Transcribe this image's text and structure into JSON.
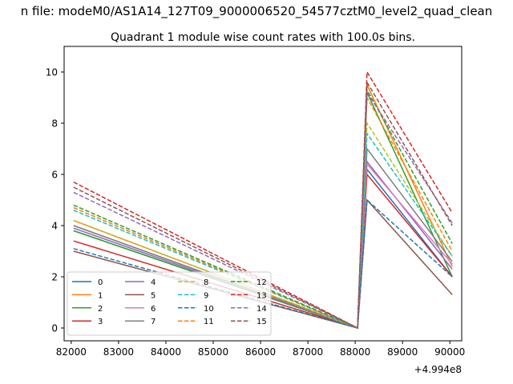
{
  "figure": {
    "suptitle": "n file: modeM0/AS1A14_127T09_9000006520_54577cztM0_level2_quad_clean"
  },
  "chart_data": {
    "type": "line",
    "title": "Quadrant 1 module wise count rates with 100.0s bins.",
    "xlabel": "",
    "ylabel": "",
    "x_offset_label": "+4.994e8",
    "xlim": [
      81850,
      90250
    ],
    "ylim": [
      -0.5,
      11.0
    ],
    "x_ticks": [
      82000,
      83000,
      84000,
      85000,
      86000,
      87000,
      88000,
      89000,
      90000
    ],
    "x_tick_labels": [
      "82000",
      "83000",
      "84000",
      "85000",
      "86000",
      "87000",
      "88000",
      "89000",
      "90000"
    ],
    "y_ticks": [
      0,
      2,
      4,
      6,
      8,
      10
    ],
    "y_tick_labels": [
      "0",
      "2",
      "4",
      "6",
      "8",
      "10"
    ],
    "grid": false,
    "legend": {
      "location": "lower-left",
      "columns": 4
    },
    "x": [
      82050,
      88050,
      88250,
      90050
    ],
    "series": [
      {
        "name": "0",
        "color": "#1f77b4",
        "style": "solid",
        "values": [
          3.8,
          0.0,
          6.2,
          2.0
        ]
      },
      {
        "name": "1",
        "color": "#ff7f0e",
        "style": "solid",
        "values": [
          4.2,
          0.0,
          9.5,
          2.4
        ]
      },
      {
        "name": "2",
        "color": "#2ca02c",
        "style": "solid",
        "values": [
          3.8,
          0.0,
          9.2,
          2.0
        ]
      },
      {
        "name": "3",
        "color": "#d62728",
        "style": "solid",
        "values": [
          3.4,
          0.0,
          6.0,
          2.0
        ]
      },
      {
        "name": "4",
        "color": "#9467bd",
        "style": "solid",
        "values": [
          3.9,
          0.0,
          6.5,
          2.3
        ]
      },
      {
        "name": "5",
        "color": "#8c564b",
        "style": "solid",
        "values": [
          3.0,
          0.0,
          5.0,
          1.3
        ]
      },
      {
        "name": "6",
        "color": "#e377c2",
        "style": "solid",
        "values": [
          4.0,
          0.0,
          6.4,
          2.5
        ]
      },
      {
        "name": "7",
        "color": "#7f7f7f",
        "style": "solid",
        "values": [
          4.0,
          0.0,
          7.0,
          2.6
        ]
      },
      {
        "name": "8",
        "color": "#bcbd22",
        "style": "dashed",
        "values": [
          4.2,
          0.0,
          8.0,
          2.8
        ]
      },
      {
        "name": "9",
        "color": "#17becf",
        "style": "dashed",
        "values": [
          4.6,
          0.0,
          7.6,
          2.8
        ]
      },
      {
        "name": "10",
        "color": "#1f77b4",
        "style": "dashed",
        "values": [
          3.1,
          0.0,
          5.0,
          2.0
        ]
      },
      {
        "name": "11",
        "color": "#ff7f0e",
        "style": "dashed",
        "values": [
          4.7,
          0.0,
          9.0,
          3.0
        ]
      },
      {
        "name": "12",
        "color": "#2ca02c",
        "style": "dashed",
        "values": [
          4.8,
          0.0,
          9.3,
          3.3
        ]
      },
      {
        "name": "13",
        "color": "#d62728",
        "style": "dashed",
        "values": [
          5.7,
          0.0,
          10.0,
          4.5
        ]
      },
      {
        "name": "14",
        "color": "#9467bd",
        "style": "dashed",
        "values": [
          5.3,
          0.0,
          9.2,
          4.1
        ]
      },
      {
        "name": "15",
        "color": "#8c564b",
        "style": "dashed",
        "values": [
          5.5,
          0.0,
          9.6,
          4.0
        ]
      }
    ]
  }
}
